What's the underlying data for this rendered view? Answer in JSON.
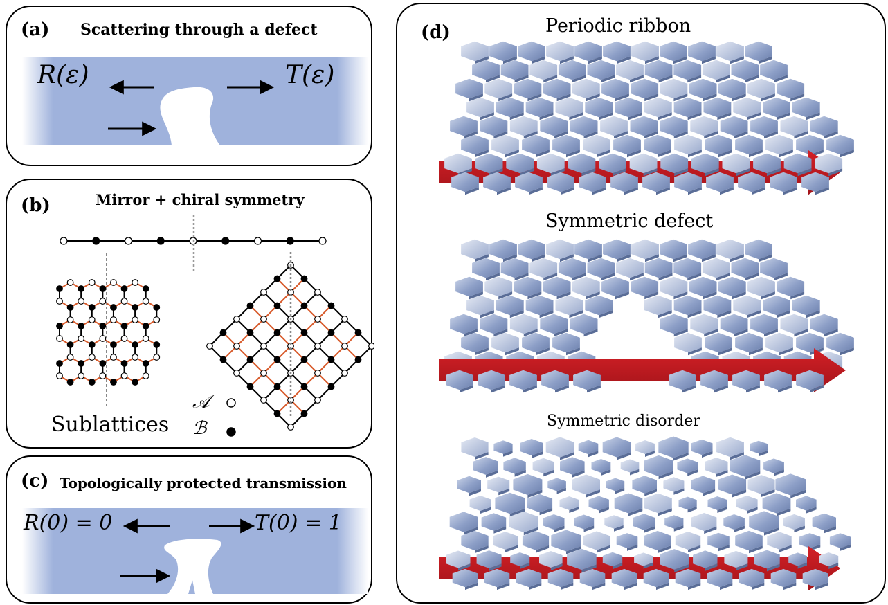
{
  "panel_a": {
    "label": "(a)",
    "title": "Scattering through a defect",
    "reflect": "R(ε)",
    "transmit": "T(ε)"
  },
  "panel_b": {
    "label": "(b)",
    "title": "Mirror + chiral symmetry",
    "sublattices": "Sublattices",
    "sub_a": "𝒜",
    "sub_b": "ℬ"
  },
  "panel_c": {
    "label": "(c)",
    "title": "Topologically protected transmission",
    "reflect": "R(0) = 0",
    "transmit": "T(0) = 1"
  },
  "panel_d": {
    "label": "(d)",
    "periodic": "Periodic ribbon",
    "defect": "Symmetric defect",
    "disorder": "Symmetric disorder"
  },
  "colors": {
    "wave": "#9fb2dc",
    "tile": "#7f93be",
    "tile_light": "#c7d1e6",
    "arrow": "#c0181f",
    "bond": "#d85a2a"
  }
}
